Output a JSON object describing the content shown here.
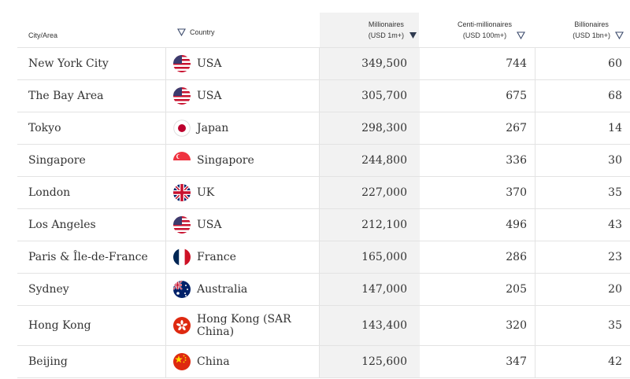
{
  "header": {
    "city": "City/Area",
    "country": "Country",
    "millionaires_line1": "Millionaires",
    "millionaires_line2": "(USD 1m+)",
    "centi_line1": "Centi-millionaires",
    "centi_line2": "(USD 100m+)",
    "billionaires_line1": "Billionaires",
    "billionaires_line2": "(USD 1bn+)"
  },
  "sort": {
    "column": "Millionaires",
    "direction": "descending"
  },
  "rows": [
    {
      "city": "New York City",
      "country": "USA",
      "flag": "usa-flag-icon",
      "millionaires": "349,500",
      "centi": "744",
      "billionaires": "60"
    },
    {
      "city": "The Bay Area",
      "country": "USA",
      "flag": "usa-flag-icon",
      "millionaires": "305,700",
      "centi": "675",
      "billionaires": "68"
    },
    {
      "city": "Tokyo",
      "country": "Japan",
      "flag": "japan-flag-icon",
      "millionaires": "298,300",
      "centi": "267",
      "billionaires": "14"
    },
    {
      "city": "Singapore",
      "country": "Singapore",
      "flag": "singapore-flag-icon",
      "millionaires": "244,800",
      "centi": "336",
      "billionaires": "30"
    },
    {
      "city": "London",
      "country": "UK",
      "flag": "uk-flag-icon",
      "millionaires": "227,000",
      "centi": "370",
      "billionaires": "35"
    },
    {
      "city": "Los Angeles",
      "country": "USA",
      "flag": "usa-flag-icon",
      "millionaires": "212,100",
      "centi": "496",
      "billionaires": "43"
    },
    {
      "city": "Paris & Île-de-France",
      "country": "France",
      "flag": "france-flag-icon",
      "millionaires": "165,000",
      "centi": "286",
      "billionaires": "23"
    },
    {
      "city": "Sydney",
      "country": "Australia",
      "flag": "australia-flag-icon",
      "millionaires": "147,000",
      "centi": "205",
      "billionaires": "20"
    },
    {
      "city": "Hong Kong",
      "country": "Hong Kong (SAR China)",
      "flag": "hong-kong-flag-icon",
      "millionaires": "143,400",
      "centi": "320",
      "billionaires": "35"
    },
    {
      "city": "Beijing",
      "country": "China",
      "flag": "china-flag-icon",
      "millionaires": "125,600",
      "centi": "347",
      "billionaires": "42"
    }
  ],
  "colors": {
    "text": "#333333",
    "sorted_column_bg": "#f2f2f2",
    "grid": "#e3e3e3",
    "sort_arrow": "#2f3a4f",
    "filter_triangle": "#3b4a6b"
  }
}
